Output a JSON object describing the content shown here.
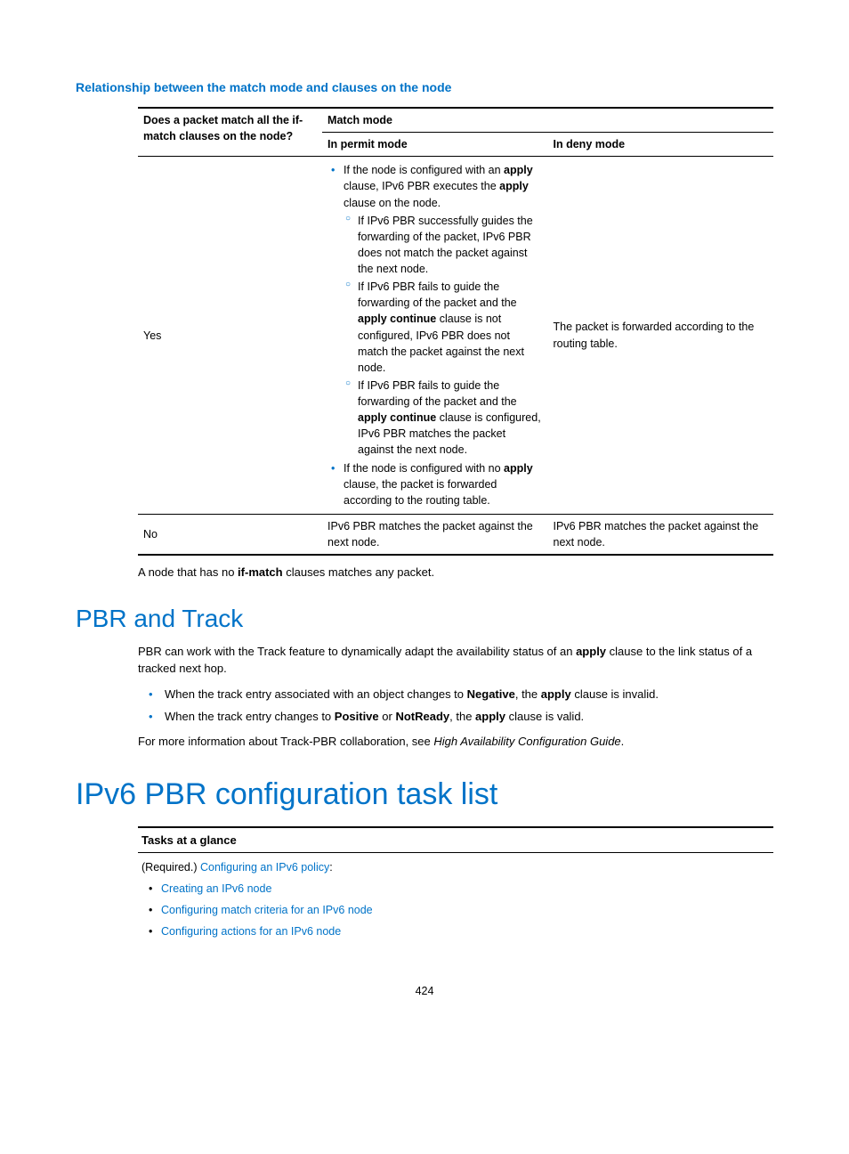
{
  "colors": {
    "accent": "#0073c8",
    "text": "#000000",
    "background": "#ffffff"
  },
  "typography": {
    "body_pt": 13,
    "line_height": 1.45,
    "h1_pt": 34,
    "h2_pt": 28,
    "subhead_pt": 14
  },
  "subheading": "Relationship between the match mode and clauses on the node",
  "table1": {
    "col0_header": "Does a packet match all the if-match clauses on the node?",
    "group_header": "Match mode",
    "col1_sub": "In permit mode",
    "col2_sub": "In deny mode",
    "col_widths_pct": [
      29,
      35.5,
      35.5
    ],
    "row_yes": {
      "label": "Yes",
      "permit_item1_a": "If the node is configured with an ",
      "permit_item1_b": "apply",
      "permit_item1_c": " clause, IPv6 PBR executes the ",
      "permit_item1_d": "apply",
      "permit_item1_e": " clause on the node.",
      "permit_sub1": "If IPv6 PBR successfully guides the forwarding of the packet, IPv6 PBR does not match the packet against the next node.",
      "permit_sub2_a": "If IPv6 PBR fails to guide the forwarding of the packet and the ",
      "permit_sub2_b": "apply continue",
      "permit_sub2_c": " clause is not configured, IPv6 PBR does not match the packet against the next node.",
      "permit_sub3_a": "If IPv6 PBR fails to guide the forwarding of the packet and the ",
      "permit_sub3_b": "apply continue",
      "permit_sub3_c": " clause is configured, IPv6 PBR matches the packet against the next node.",
      "permit_item2_a": "If the node is configured with no ",
      "permit_item2_b": "apply",
      "permit_item2_c": " clause, the packet is forwarded according to the routing table.",
      "deny": "The packet is forwarded according to the routing table."
    },
    "row_no": {
      "label": "No",
      "permit": "IPv6 PBR matches the packet against the next node.",
      "deny": "IPv6 PBR matches the packet against the next node."
    }
  },
  "note_a": "A node that has no ",
  "note_b": "if-match",
  "note_c": " clauses matches any packet.",
  "h2": "PBR and Track",
  "p2_a": "PBR can work with the Track feature to dynamically adapt the availability status of an ",
  "p2_b": "apply",
  "p2_c": " clause to the link status of a tracked next hop.",
  "li1_a": "When the track entry associated with an object changes to ",
  "li1_b": "Negative",
  "li1_c": ", the ",
  "li1_d": "apply",
  "li1_e": " clause is invalid.",
  "li2_a": "When the track entry changes to ",
  "li2_b": "Positive",
  "li2_c": " or ",
  "li2_d": "NotReady",
  "li2_e": ", the ",
  "li2_f": "apply",
  "li2_g": " clause is valid.",
  "p3_a": "For more information about Track-PBR collaboration, see ",
  "p3_b": "High Availability Configuration Guide",
  "p3_c": ".",
  "h1": "IPv6 PBR configuration task list",
  "tasks": {
    "header": "Tasks at a glance",
    "req": "(Required.) ",
    "link0": "Configuring an IPv6 policy",
    "colon": ":",
    "link1": "Creating an IPv6 node",
    "link2": "Configuring match criteria for an IPv6 node",
    "link3": "Configuring actions for an IPv6 node"
  },
  "page": "424"
}
